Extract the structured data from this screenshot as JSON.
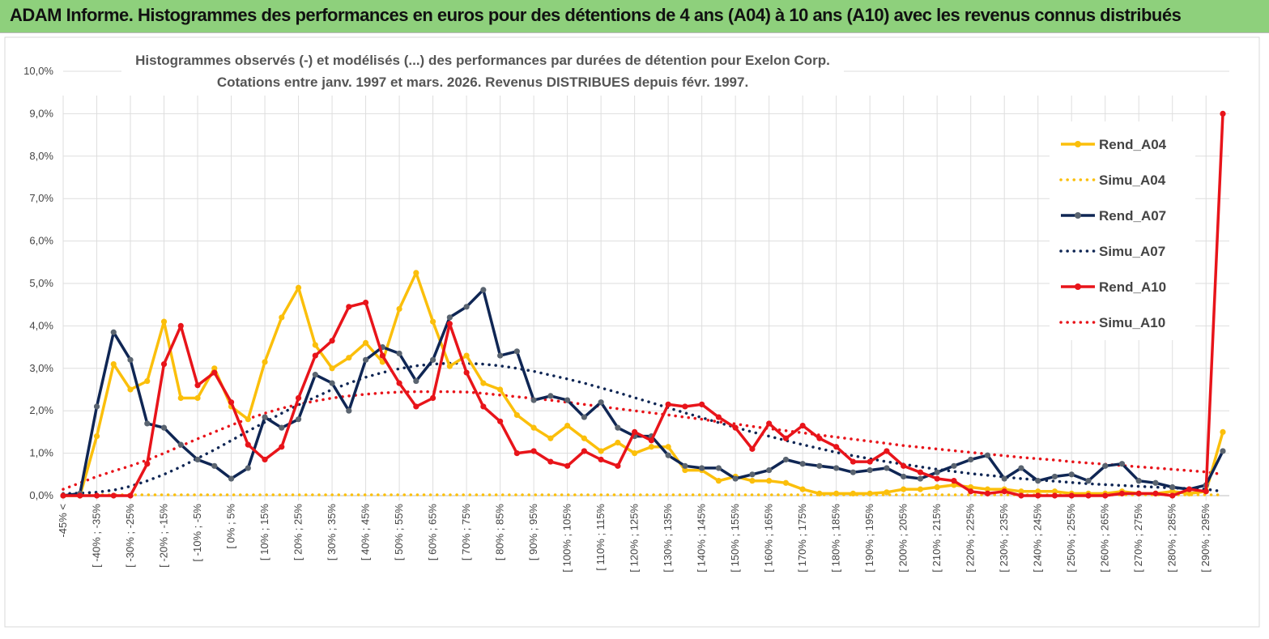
{
  "banner": {
    "title": "ADAM Informe. Histogrammes des performances en euros pour des détentions de 4 ans (A04) à 10 ans (A10) avec les revenus connus distribués"
  },
  "colors": {
    "banner": "#8ed07c",
    "A04": "#fbbf0b",
    "A07": "#0f2654",
    "A10": "#e8141a",
    "grid": "#dedede"
  },
  "chart_data": {
    "type": "line",
    "title": "Histogrammes observés (-) et modélisés (...) des performances par durées de détention pour Exelon Corp.",
    "subtitle": "Cotations entre janv. 1997 et mars. 2026. Revenus DISTRIBUES depuis févr. 1997.",
    "ylim": [
      0,
      10
    ],
    "yticks": [
      "0,0%",
      "1,0%",
      "2,0%",
      "3,0%",
      "4,0%",
      "5,0%",
      "6,0%",
      "7,0%",
      "8,0%",
      "9,0%",
      "10,0%"
    ],
    "xticklabels": [
      "-45% <",
      "[ -40% ; -35%",
      "[ -30% ; -25%",
      "[ -20% ; -15%",
      "[ -10% ; -5%",
      "[ 0% ; 5%",
      "[ 10% ; 15%",
      "[ 20% ; 25%",
      "[ 30% ; 35%",
      "[ 40% ; 45%",
      "[ 50% ; 55%",
      "[ 60% ; 65%",
      "[ 70% ; 75%",
      "[ 80% ; 85%",
      "[ 90% ; 95%",
      "[ 100% ; 105%",
      "[ 110% ; 115%",
      "[ 120% ; 125%",
      "[ 130% ; 135%",
      "[ 140% ; 145%",
      "[ 150% ; 155%",
      "[ 160% ; 165%",
      "[ 170% ; 175%",
      "[ 180% ; 185%",
      "[ 190% ; 195%",
      "[ 200% ; 205%",
      "[ 210% ; 215%",
      "[ 220% ; 225%",
      "[ 230% ; 235%",
      "[ 240% ; 245%",
      "[ 250% ; 255%",
      "[ 260% ; 265%",
      "[ 270% ; 275%",
      "[ 280% ; 285%",
      "[ 290% ; 295%"
    ],
    "num_bins": 70,
    "series": [
      {
        "name": "Rend_A04",
        "style": "solid",
        "color": "#fbbf0b",
        "values": [
          0.0,
          0.0,
          1.4,
          3.1,
          2.5,
          2.7,
          4.1,
          2.3,
          2.3,
          3.0,
          2.1,
          1.8,
          3.15,
          4.2,
          4.9,
          3.55,
          3.0,
          3.25,
          3.6,
          3.15,
          4.4,
          5.25,
          4.1,
          3.05,
          3.3,
          2.65,
          2.5,
          1.9,
          1.6,
          1.35,
          1.65,
          1.35,
          1.05,
          1.25,
          1.0,
          1.15,
          1.15,
          0.6,
          0.6,
          0.35,
          0.45,
          0.35,
          0.35,
          0.3,
          0.15,
          0.05,
          0.05,
          0.05,
          0.05,
          0.08,
          0.15,
          0.15,
          0.2,
          0.25,
          0.2,
          0.15,
          0.15,
          0.1,
          0.1,
          0.1,
          0.05,
          0.05,
          0.05,
          0.1,
          0.05,
          0.05,
          0.1,
          0.05,
          0.1,
          1.5
        ]
      },
      {
        "name": "Simu_A04",
        "style": "dotted",
        "color": "#fbbf0b",
        "values": [
          0.02,
          0.02,
          0.02,
          0.02,
          0.02,
          0.02,
          0.02,
          0.02,
          0.02,
          0.02,
          0.02,
          0.02,
          0.02,
          0.02,
          0.02,
          0.02,
          0.02,
          0.02,
          0.02,
          0.02,
          0.02,
          0.02,
          0.02,
          0.02,
          0.02,
          0.02,
          0.02,
          0.02,
          0.02,
          0.02,
          0.02,
          0.02,
          0.02,
          0.02,
          0.02,
          0.02,
          0.02,
          0.02,
          0.02,
          0.02,
          0.02,
          0.02,
          0.02,
          0.02,
          0.02,
          0.02,
          0.02,
          0.02,
          0.02,
          0.02,
          0.02,
          0.02,
          0.02,
          0.02,
          0.02,
          0.02,
          0.02,
          0.02,
          0.02,
          0.02,
          0.02,
          0.02,
          0.02,
          0.02,
          0.02,
          0.02,
          0.02,
          0.02,
          0.02,
          0.02
        ]
      },
      {
        "name": "Rend_A07",
        "style": "solid",
        "color": "#0f2654",
        "values": [
          0.0,
          0.05,
          2.1,
          3.85,
          3.2,
          1.7,
          1.6,
          1.2,
          0.85,
          0.7,
          0.4,
          0.65,
          1.85,
          1.6,
          1.8,
          2.85,
          2.65,
          2.0,
          3.2,
          3.5,
          3.35,
          2.7,
          3.2,
          4.2,
          4.45,
          4.85,
          3.3,
          3.4,
          2.25,
          2.35,
          2.25,
          1.85,
          2.2,
          1.6,
          1.4,
          1.4,
          0.95,
          0.7,
          0.65,
          0.65,
          0.4,
          0.5,
          0.6,
          0.85,
          0.75,
          0.7,
          0.65,
          0.55,
          0.6,
          0.65,
          0.45,
          0.4,
          0.55,
          0.7,
          0.85,
          0.95,
          0.4,
          0.65,
          0.35,
          0.45,
          0.5,
          0.35,
          0.7,
          0.75,
          0.35,
          0.3,
          0.2,
          0.15,
          0.25,
          1.05
        ]
      },
      {
        "name": "Simu_A07",
        "style": "dotted",
        "color": "#0f2654",
        "values": [
          0.05,
          0.06,
          0.08,
          0.13,
          0.22,
          0.35,
          0.5,
          0.68,
          0.88,
          1.08,
          1.3,
          1.52,
          1.73,
          1.94,
          2.14,
          2.32,
          2.5,
          2.65,
          2.79,
          2.9,
          2.99,
          3.06,
          3.1,
          3.12,
          3.12,
          3.1,
          3.06,
          3.0,
          2.93,
          2.84,
          2.75,
          2.65,
          2.54,
          2.43,
          2.31,
          2.19,
          2.07,
          1.95,
          1.84,
          1.72,
          1.61,
          1.5,
          1.4,
          1.3,
          1.2,
          1.11,
          1.02,
          0.94,
          0.87,
          0.8,
          0.74,
          0.68,
          0.62,
          0.57,
          0.52,
          0.48,
          0.44,
          0.4,
          0.37,
          0.34,
          0.31,
          0.28,
          0.26,
          0.24,
          0.22,
          0.2,
          0.18,
          0.17,
          0.15,
          0.1
        ]
      },
      {
        "name": "Rend_A10",
        "style": "solid",
        "color": "#e8141a",
        "values": [
          0.0,
          0.0,
          0.0,
          0.0,
          0.0,
          0.75,
          3.1,
          4.0,
          2.6,
          2.9,
          2.2,
          1.2,
          0.85,
          1.15,
          2.3,
          3.3,
          3.65,
          4.45,
          4.55,
          3.3,
          2.65,
          2.1,
          2.3,
          4.05,
          2.9,
          2.1,
          1.75,
          1.0,
          1.05,
          0.8,
          0.7,
          1.05,
          0.85,
          0.7,
          1.5,
          1.3,
          2.15,
          2.1,
          2.15,
          1.85,
          1.6,
          1.1,
          1.7,
          1.35,
          1.65,
          1.35,
          1.15,
          0.8,
          0.8,
          1.05,
          0.7,
          0.55,
          0.4,
          0.35,
          0.1,
          0.05,
          0.1,
          0.0,
          0.0,
          0.0,
          0.0,
          0.0,
          0.0,
          0.05,
          0.05,
          0.05,
          0.0,
          0.15,
          0.1,
          9.0
        ]
      },
      {
        "name": "Simu_A10",
        "style": "dotted",
        "color": "#e8141a",
        "values": [
          0.15,
          0.3,
          0.45,
          0.58,
          0.7,
          0.84,
          1.0,
          1.17,
          1.34,
          1.5,
          1.66,
          1.81,
          1.94,
          2.06,
          2.15,
          2.23,
          2.3,
          2.35,
          2.39,
          2.42,
          2.44,
          2.45,
          2.45,
          2.45,
          2.44,
          2.41,
          2.37,
          2.33,
          2.29,
          2.25,
          2.2,
          2.15,
          2.1,
          2.05,
          2.0,
          1.95,
          1.9,
          1.85,
          1.8,
          1.74,
          1.69,
          1.63,
          1.58,
          1.53,
          1.48,
          1.43,
          1.38,
          1.33,
          1.28,
          1.23,
          1.18,
          1.14,
          1.1,
          1.06,
          1.02,
          0.98,
          0.94,
          0.9,
          0.87,
          0.84,
          0.8,
          0.77,
          0.74,
          0.71,
          0.68,
          0.65,
          0.62,
          0.59,
          0.56,
          0.5
        ]
      }
    ]
  }
}
